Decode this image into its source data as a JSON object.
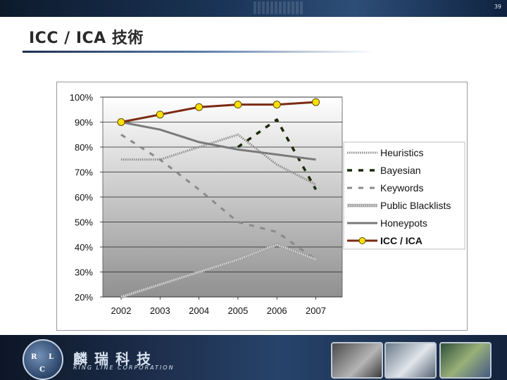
{
  "slide": {
    "page_number": "39",
    "title": "ICC / ICA 技術"
  },
  "footer": {
    "logo_letters": [
      "R",
      "L",
      "C"
    ],
    "company_name": "麟瑞科技",
    "company_sub": "RING LINE CORPORATION"
  },
  "colors": {
    "heuristics": "#8a8a8a",
    "bayesian": "#1a2a0a",
    "keywords": "#8a8a8a",
    "public_blacklists": "#dcdcdc",
    "honeypots": "#7a7a7a",
    "icc_ica": "#7b2a12",
    "icc_marker": "#ffe000"
  },
  "chart_data": {
    "type": "line",
    "x": [
      "2002",
      "2003",
      "2004",
      "2005",
      "2006",
      "2007"
    ],
    "y_ticks": [
      "100%",
      "90%",
      "80%",
      "70%",
      "60%",
      "50%",
      "40%",
      "30%",
      "20%"
    ],
    "ylim": [
      20,
      100
    ],
    "grid": true,
    "legend_position": "right",
    "series": [
      {
        "name": "Heuristics",
        "style": "dotted-light",
        "values": [
          75,
          75,
          80,
          85,
          73,
          65
        ]
      },
      {
        "name": "Bayesian",
        "style": "dashed-dark",
        "values": [
          null,
          null,
          null,
          80,
          91,
          63
        ]
      },
      {
        "name": "Keywords",
        "style": "dashed-gray",
        "values": [
          85,
          75,
          63,
          50,
          46,
          35
        ]
      },
      {
        "name": "Public Blacklists",
        "style": "dotted-white",
        "values": [
          20,
          25,
          30,
          35,
          41,
          35
        ]
      },
      {
        "name": "Honeypots",
        "style": "solid-gray",
        "values": [
          90,
          87,
          82,
          79,
          77,
          75
        ]
      },
      {
        "name": "ICC / ICA",
        "style": "solid-markers",
        "values": [
          90,
          93,
          96,
          97,
          97,
          98
        ]
      }
    ]
  }
}
